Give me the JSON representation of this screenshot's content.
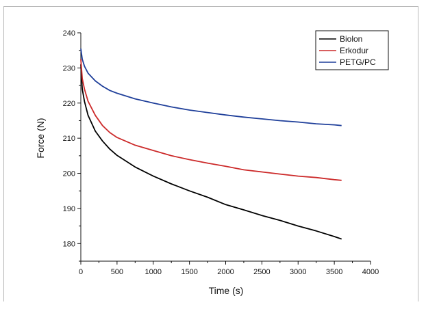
{
  "chart_data": {
    "type": "line",
    "title": "",
    "xlabel": "Time (s)",
    "ylabel": "Force (N)",
    "xlim": [
      0,
      4000
    ],
    "ylim": [
      175,
      240
    ],
    "x_ticks": [
      "0",
      "500",
      "1000",
      "1500",
      "2000",
      "2500",
      "3000",
      "3500",
      "4000"
    ],
    "y_ticks": [
      "180",
      "190",
      "200",
      "210",
      "220",
      "230",
      "240"
    ],
    "grid": false,
    "legend_position": "top-right",
    "x": [
      0,
      20,
      50,
      100,
      200,
      300,
      400,
      500,
      750,
      1000,
      1250,
      1500,
      1750,
      2000,
      2250,
      2500,
      2750,
      3000,
      3250,
      3500,
      3600
    ],
    "series": [
      {
        "name": "Biolon",
        "color": "#000000",
        "values": [
          231.0,
          224.0,
          220.5,
          216.5,
          212.0,
          209.2,
          206.9,
          205.1,
          201.8,
          199.2,
          197.0,
          195.0,
          193.2,
          191.1,
          189.6,
          188.0,
          186.6,
          185.0,
          183.6,
          182.0,
          181.3
        ]
      },
      {
        "name": "Erkodur",
        "color": "#cc2a2a",
        "values": [
          232.5,
          227.0,
          224.0,
          220.5,
          216.5,
          213.6,
          211.6,
          210.2,
          208.0,
          206.5,
          205.0,
          203.9,
          202.9,
          202.0,
          201.0,
          200.4,
          199.8,
          199.2,
          198.8,
          198.2,
          198.0
        ]
      },
      {
        "name": "PETG/PC",
        "color": "#1f3f9a",
        "values": [
          235.5,
          232.5,
          230.5,
          228.5,
          226.3,
          224.8,
          223.6,
          222.8,
          221.2,
          220.0,
          218.9,
          218.0,
          217.3,
          216.6,
          216.0,
          215.5,
          215.0,
          214.6,
          214.1,
          213.8,
          213.6
        ]
      }
    ]
  }
}
